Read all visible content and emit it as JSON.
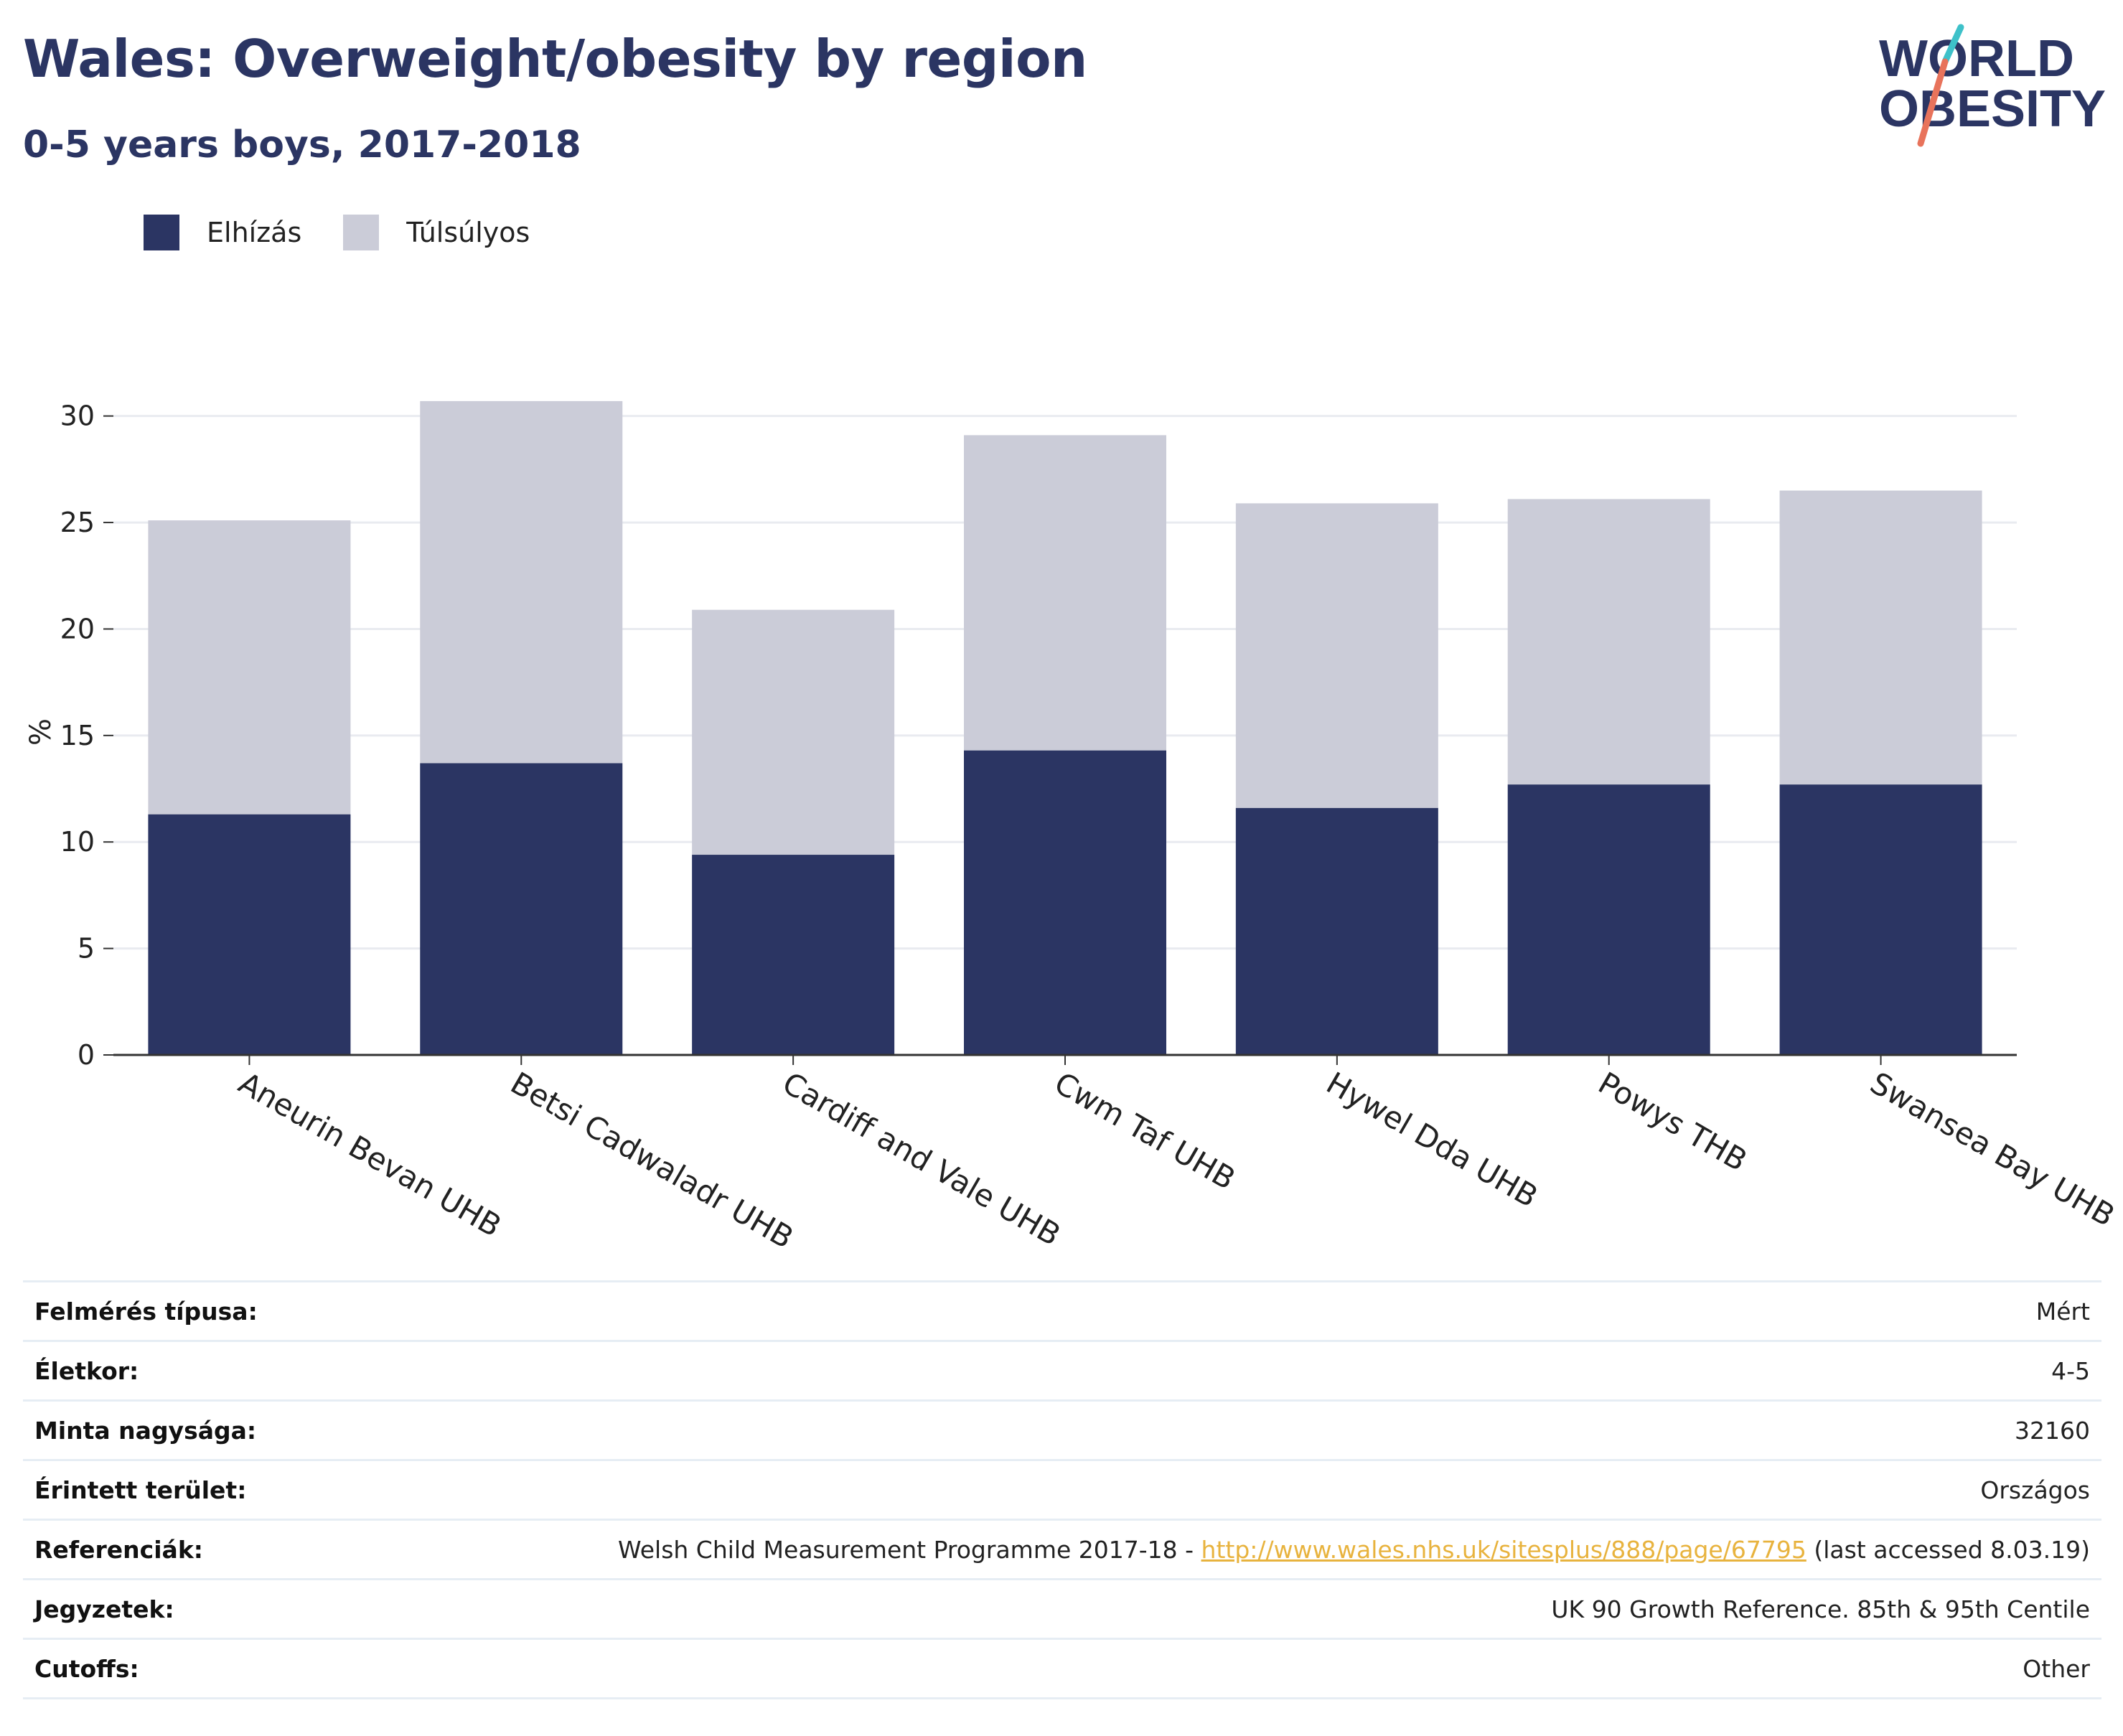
{
  "header": {
    "title": "Wales: Overweight/obesity by region",
    "subtitle": "0-5 years boys, 2017-2018"
  },
  "logo": {
    "line1": "WORLD",
    "line2": "OBESITY"
  },
  "colors": {
    "obese": "#2b3563",
    "overweight": "#cbccd8",
    "title": "#2b3563",
    "link": "#e8b33e",
    "logo_teal": "#3ec1c9",
    "logo_coral": "#e8735b"
  },
  "chart_data": {
    "type": "bar",
    "stacked": true,
    "categories": [
      "Aneurin Bevan UHB",
      "Betsi Cadwaladr UHB",
      "Cardiff and Vale UHB",
      "Cwm Taf UHB",
      "Hywel Dda UHB",
      "Powys THB",
      "Swansea Bay UHB"
    ],
    "series": [
      {
        "name": "Elhízás",
        "color": "#2b3563",
        "values": [
          11.3,
          13.7,
          9.4,
          14.3,
          11.6,
          12.7,
          12.7
        ]
      },
      {
        "name": "Túlsúlyos",
        "color": "#cbccd8",
        "values": [
          13.8,
          17.0,
          11.5,
          14.8,
          14.3,
          13.4,
          13.8
        ]
      }
    ],
    "ylabel": "%",
    "xlabel": "",
    "ylim": [
      0,
      31
    ],
    "yticks": [
      0,
      5,
      10,
      15,
      20,
      25,
      30
    ],
    "grid": true,
    "legend_position": "top-left"
  },
  "info": {
    "rows": [
      {
        "label": "Felmérés típusa:",
        "value": "Mért"
      },
      {
        "label": "Életkor:",
        "value": "4-5"
      },
      {
        "label": "Minta nagysága:",
        "value": "32160"
      },
      {
        "label": "Érintett terület:",
        "value": "Országos"
      },
      {
        "label": "Referenciák:",
        "value": "Welsh Child Measurement Programme 2017-18 - ",
        "link": "http://www.wales.nhs.uk/sitesplus/888/page/67795",
        "suffix": " (last accessed 8.03.19)"
      },
      {
        "label": "Jegyzetek:",
        "value": "UK 90 Growth Reference. 85th & 95th Centile"
      },
      {
        "label": "Cutoffs:",
        "value": "Other"
      }
    ]
  }
}
